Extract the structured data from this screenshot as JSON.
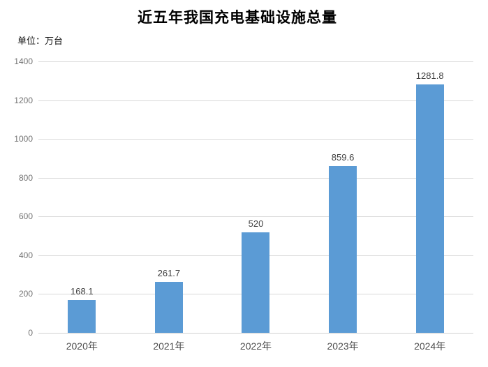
{
  "title": "近五年我国充电基础设施总量",
  "unit_label": "单位：万台",
  "chart_data": {
    "type": "bar",
    "title": "近五年我国充电基础设施总量",
    "ylabel": "单位：万台",
    "categories": [
      "2020年",
      "2021年",
      "2022年",
      "2023年",
      "2024年"
    ],
    "values": [
      168.1,
      261.7,
      520,
      859.6,
      1281.8
    ],
    "value_labels": [
      "168.1",
      "261.7",
      "520",
      "859.6",
      "1281.8"
    ],
    "ylim": [
      0,
      1400
    ],
    "ytick_labels": [
      "1400",
      "1200",
      "1000",
      "800",
      "600",
      "400",
      "200",
      "0"
    ],
    "grid": true,
    "legend": "none",
    "colors": {
      "bar": "#5B9BD5",
      "gridline": "#d9d9d9",
      "axis_line": "#d0d0d0",
      "ytick_text": "#737373",
      "xtick_text": "#4d4d4d",
      "value_label_text": "#404040",
      "title_text": "#000000"
    }
  }
}
